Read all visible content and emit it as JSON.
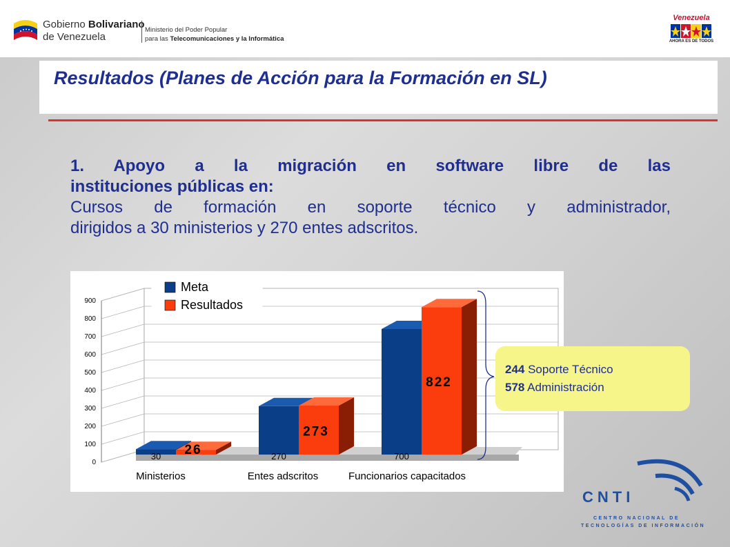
{
  "header": {
    "gov_line1_a": "Gobierno ",
    "gov_line1_b": "Bolivariano",
    "gov_line2": "de Venezuela",
    "ministry_line1": "Ministerio del Poder Popular",
    "ministry_line2_a": "para las ",
    "ministry_line2_b": "Telecomunicaciones y la Informática",
    "vzla_title": "Venezuela",
    "vzla_sub": "AHORA ES DE TODOS"
  },
  "slide": {
    "title": "Resultados (Planes de Acción para la Formación en SL)",
    "para1_line1": "1. Apoyo a la  migración en software libre de las",
    "para1_line2": "instituciones públicas en:",
    "para2_line1": "Cursos de formación en soporte técnico y administrador,",
    "para2_line2": "dirigidos a 30 ministerios y 270 entes adscritos."
  },
  "callout": {
    "line1_num": "244",
    "line1_text": " Soporte Técnico",
    "line2_num": "578",
    "line2_text": " Administración"
  },
  "footer": {
    "cnti_logo": "CNTI",
    "cnti_line1": "CENTRO NACIONAL DE",
    "cnti_line2": "TECNOLOGÍAS DE INFORMACIÓN"
  },
  "colors": {
    "title_blue": "#1f2f8f",
    "meta_blue": "#0a3f87",
    "result_orange": "#fb3c0c",
    "callout_yellow": "#f6f58a",
    "accent_red": "#d9342b"
  },
  "chart_data": {
    "type": "bar",
    "categories": [
      "Ministerios",
      "Entes adscritos",
      "Funcionarios capacitados"
    ],
    "series": [
      {
        "name": "Meta",
        "values": [
          30,
          270,
          700
        ],
        "labels": [
          "30",
          "270",
          "700"
        ]
      },
      {
        "name": "Resultados",
        "values": [
          26,
          273,
          822
        ],
        "labels": [
          "26",
          "273",
          "822"
        ]
      }
    ],
    "yticks": [
      "0",
      "100",
      "200",
      "300",
      "400",
      "500",
      "600",
      "700",
      "800",
      "900"
    ],
    "ylim": [
      0,
      900
    ],
    "legend_position": "top-left",
    "grid": true,
    "three_d": true
  }
}
